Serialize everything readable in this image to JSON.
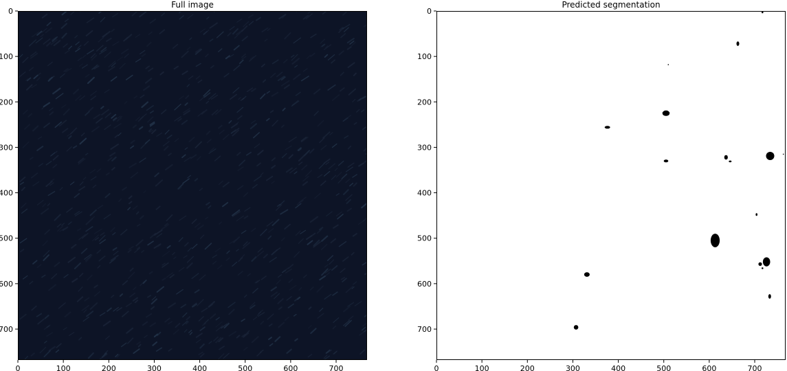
{
  "chart_data": [
    {
      "type": "heatmap",
      "title": "Full image",
      "image_content": "dark navy textured image",
      "colors": {
        "base": "#0d1426",
        "streak": "#23344a",
        "streak_dim": "#1a2438"
      },
      "x_range": [
        0,
        768
      ],
      "y_range": [
        0,
        768
      ],
      "x_ticks": [
        0,
        100,
        200,
        300,
        400,
        500,
        600,
        700
      ],
      "y_ticks": [
        0,
        100,
        200,
        300,
        400,
        500,
        600,
        700
      ],
      "grid": false
    },
    {
      "type": "heatmap",
      "title": "Predicted segmentation",
      "background_color": "#ffffff",
      "blob_color": "#000000",
      "x_range": [
        0,
        768
      ],
      "y_range": [
        0,
        768
      ],
      "x_ticks": [
        0,
        100,
        200,
        300,
        400,
        500,
        600,
        700
      ],
      "y_ticks": [
        0,
        100,
        200,
        300,
        400,
        500,
        600,
        700
      ],
      "grid": false,
      "segments": [
        {
          "x": 717,
          "y": 3,
          "rx": 2,
          "ry": 2
        },
        {
          "x": 663,
          "y": 72,
          "rx": 3,
          "ry": 5
        },
        {
          "x": 510,
          "y": 118,
          "rx": 1,
          "ry": 1
        },
        {
          "x": 505,
          "y": 225,
          "rx": 8,
          "ry": 6
        },
        {
          "x": 376,
          "y": 256,
          "rx": 6,
          "ry": 3
        },
        {
          "x": 505,
          "y": 330,
          "rx": 5,
          "ry": 3
        },
        {
          "x": 637,
          "y": 322,
          "rx": 4,
          "ry": 5
        },
        {
          "x": 646,
          "y": 331,
          "rx": 3,
          "ry": 2
        },
        {
          "x": 734,
          "y": 319,
          "rx": 9,
          "ry": 9
        },
        {
          "x": 763,
          "y": 315,
          "rx": 1,
          "ry": 1
        },
        {
          "x": 704,
          "y": 448,
          "rx": 2,
          "ry": 3
        },
        {
          "x": 613,
          "y": 505,
          "rx": 10,
          "ry": 15
        },
        {
          "x": 726,
          "y": 552,
          "rx": 8,
          "ry": 10
        },
        {
          "x": 712,
          "y": 557,
          "rx": 4,
          "ry": 4
        },
        {
          "x": 717,
          "y": 566,
          "rx": 2,
          "ry": 2
        },
        {
          "x": 331,
          "y": 580,
          "rx": 6,
          "ry": 5
        },
        {
          "x": 733,
          "y": 628,
          "rx": 3,
          "ry": 5
        },
        {
          "x": 307,
          "y": 696,
          "rx": 5,
          "ry": 5
        }
      ]
    }
  ]
}
